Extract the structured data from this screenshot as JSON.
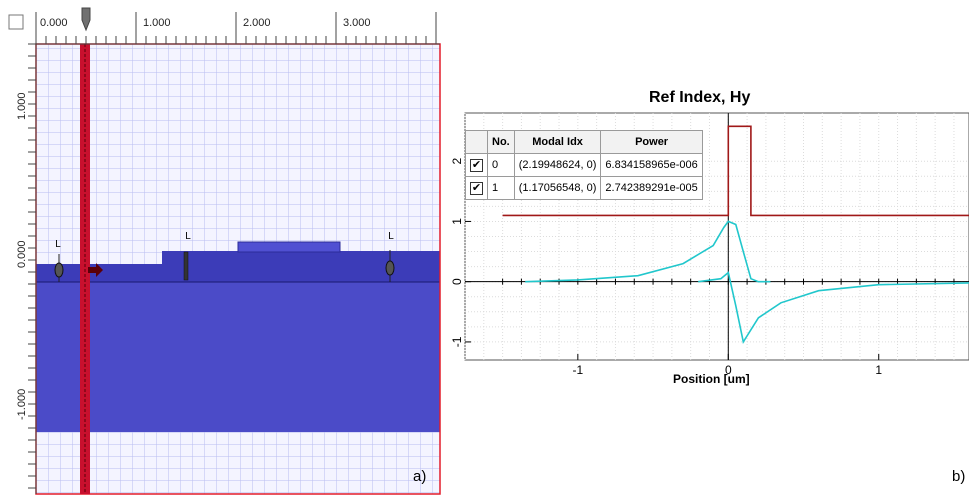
{
  "layout_editor": {
    "top_ruler_ticks": [
      "0.000",
      "1.000",
      "2.000",
      "3.000"
    ],
    "left_ruler_ticks": [
      "1.000",
      "0.000",
      "-1.000"
    ],
    "markers": [
      "L",
      "L",
      "L"
    ],
    "panel_label": "a)",
    "colors": {
      "grid_bg": "#f4f4ff",
      "grid_line": "#b9bdf0",
      "substrate": "#4b4bc8",
      "waveguide": "#3c3cb8",
      "beam": "#c8102e",
      "border": "#e31d2a"
    }
  },
  "mode_plot": {
    "title": "Ref Index, Hy",
    "xlabel": "Position [um]",
    "panel_label": "b)",
    "table": {
      "headers": [
        "",
        "No.",
        "Modal Idx",
        "Power"
      ],
      "rows": [
        {
          "checked": true,
          "no": "0",
          "modal_idx": "(2.19948624, 0)",
          "power": "6.834158965e-006"
        },
        {
          "checked": true,
          "no": "1",
          "modal_idx": "(1.17056548, 0)",
          "power": "2.742389291e-005"
        }
      ]
    }
  },
  "chart_data": {
    "type": "line",
    "title": "Ref Index, Hy",
    "xlabel": "Position [um]",
    "ylabel": "",
    "xlim": [
      -1.75,
      1.6
    ],
    "ylim": [
      -1.3,
      2.8
    ],
    "x_ticks": [
      -1,
      0,
      1
    ],
    "y_ticks": [
      -1,
      0,
      1,
      2
    ],
    "grid": true,
    "series": [
      {
        "color": "#a01818",
        "points": [
          [
            -1.5,
            1.1
          ],
          [
            0,
            1.1
          ],
          [
            0,
            2.58
          ],
          [
            0.15,
            2.58
          ],
          [
            0.15,
            1.1
          ],
          [
            1.6,
            1.1
          ]
        ]
      },
      {
        "color": "#21c7cc",
        "points": [
          [
            -1.35,
            0.0
          ],
          [
            -1.0,
            0.03
          ],
          [
            -0.6,
            0.1
          ],
          [
            -0.3,
            0.3
          ],
          [
            -0.1,
            0.6
          ],
          [
            -0.03,
            0.9
          ],
          [
            0.0,
            1.0
          ],
          [
            0.05,
            0.95
          ],
          [
            0.1,
            0.5
          ],
          [
            0.15,
            0.05
          ],
          [
            0.2,
            0.0
          ],
          [
            0.28,
            0.0
          ]
        ]
      },
      {
        "color": "#21c7cc",
        "points": [
          [
            -0.2,
            0.0
          ],
          [
            -0.05,
            0.05
          ],
          [
            0.0,
            0.15
          ],
          [
            0.05,
            -0.4
          ],
          [
            0.1,
            -1.0
          ],
          [
            0.2,
            -0.6
          ],
          [
            0.35,
            -0.35
          ],
          [
            0.6,
            -0.15
          ],
          [
            1.0,
            -0.05
          ],
          [
            1.6,
            -0.02
          ]
        ]
      }
    ]
  }
}
